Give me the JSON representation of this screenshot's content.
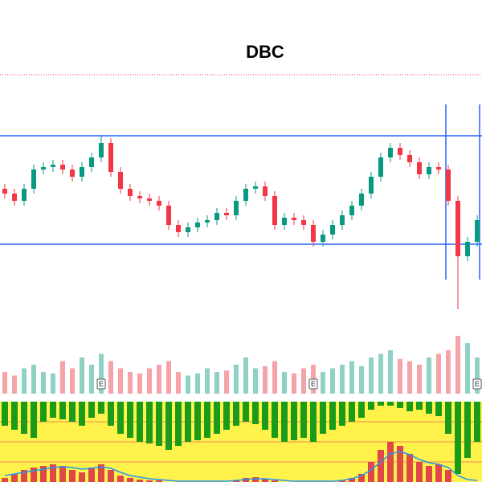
{
  "chart_data": {
    "type": "candlestick",
    "title": "DBC",
    "up_color": "#089981",
    "down_color": "#f23645",
    "ylim": [
      0,
      100
    ],
    "open": [
      55,
      53,
      50,
      55,
      63,
      64,
      65,
      63,
      60,
      64,
      68,
      74,
      62,
      55,
      52,
      51,
      50,
      48,
      40,
      37,
      39,
      41,
      42,
      45,
      44,
      50,
      55,
      56,
      52,
      40,
      43,
      42,
      40,
      33,
      36,
      40,
      44,
      48,
      53,
      60,
      68,
      72,
      69,
      66,
      61,
      64,
      63,
      50,
      27,
      33
    ],
    "high": [
      57,
      55,
      57,
      65,
      66,
      67,
      67,
      65,
      66,
      70,
      77,
      76,
      64,
      57,
      54,
      53,
      52,
      50,
      42,
      41,
      43,
      44,
      47,
      47,
      52,
      57,
      58,
      58,
      54,
      45,
      45,
      44,
      42,
      38,
      42,
      46,
      50,
      55,
      62,
      70,
      74,
      74,
      71,
      68,
      66,
      66,
      65,
      52,
      35,
      44
    ],
    "low": [
      51,
      48,
      48,
      53,
      61,
      62,
      61,
      58,
      58,
      62,
      66,
      60,
      53,
      50,
      49,
      48,
      46,
      38,
      35,
      35,
      37,
      39,
      40,
      42,
      42,
      48,
      53,
      50,
      38,
      38,
      40,
      38,
      31,
      31,
      34,
      38,
      42,
      46,
      51,
      58,
      66,
      67,
      64,
      59,
      59,
      61,
      48,
      5,
      25,
      31
    ],
    "close": [
      53,
      50,
      55,
      63,
      64,
      65,
      63,
      60,
      64,
      68,
      74,
      62,
      55,
      52,
      51,
      50,
      48,
      40,
      37,
      39,
      41,
      42,
      45,
      44,
      50,
      55,
      56,
      52,
      40,
      43,
      42,
      40,
      33,
      36,
      40,
      44,
      48,
      53,
      60,
      68,
      72,
      69,
      66,
      61,
      64,
      63,
      50,
      27,
      33,
      42
    ],
    "levels": [
      77,
      32
    ],
    "level_color": "#2962ff",
    "volume": [
      30,
      25,
      35,
      40,
      30,
      28,
      45,
      35,
      50,
      40,
      55,
      45,
      35,
      30,
      28,
      35,
      40,
      45,
      30,
      25,
      28,
      35,
      30,
      32,
      40,
      50,
      35,
      38,
      45,
      30,
      28,
      35,
      40,
      30,
      35,
      40,
      45,
      38,
      50,
      55,
      60,
      48,
      45,
      40,
      50,
      55,
      60,
      80,
      70,
      50
    ],
    "volume_ylim": [
      0,
      100
    ],
    "events": [
      {
        "x": 10,
        "label": "E"
      },
      {
        "x": 32,
        "label": "E"
      },
      {
        "x": 49,
        "label": "E"
      }
    ],
    "indicator": {
      "ylim": [
        0,
        100
      ],
      "background": "#fff24a",
      "green": [
        30,
        35,
        40,
        45,
        25,
        20,
        22,
        25,
        30,
        20,
        15,
        30,
        40,
        45,
        50,
        52,
        55,
        60,
        55,
        50,
        48,
        45,
        40,
        35,
        30,
        25,
        28,
        35,
        45,
        50,
        48,
        45,
        50,
        40,
        35,
        30,
        25,
        20,
        10,
        5,
        5,
        8,
        12,
        10,
        15,
        18,
        40,
        90,
        70,
        50
      ],
      "red": [
        5,
        10,
        15,
        18,
        20,
        22,
        20,
        15,
        12,
        18,
        22,
        15,
        8,
        5,
        3,
        2,
        2,
        0,
        0,
        0,
        0,
        0,
        0,
        0,
        2,
        5,
        6,
        4,
        2,
        0,
        0,
        0,
        0,
        0,
        0,
        2,
        5,
        10,
        25,
        40,
        50,
        45,
        35,
        25,
        20,
        22,
        15,
        0,
        0,
        0
      ],
      "line": [
        8,
        10,
        12,
        14,
        16,
        18,
        19,
        18,
        16,
        17,
        19,
        17,
        12,
        8,
        6,
        4,
        3,
        2,
        1,
        1,
        1,
        1,
        1,
        1,
        2,
        3,
        4,
        4,
        3,
        2,
        1,
        1,
        1,
        1,
        1,
        2,
        4,
        8,
        15,
        25,
        35,
        38,
        34,
        28,
        24,
        22,
        18,
        8,
        3,
        2
      ],
      "line_color": "#2196f3"
    }
  }
}
